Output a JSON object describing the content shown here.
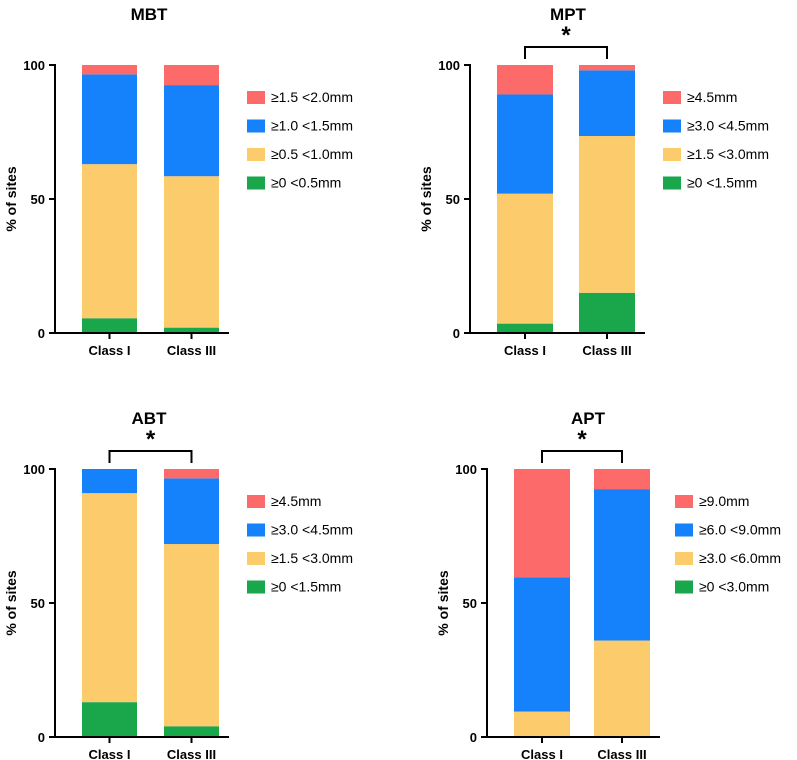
{
  "colors": {
    "green": "#1aa64a",
    "yellow": "#fccb6c",
    "blue": "#1581fb",
    "red": "#fc6a6a"
  },
  "chart_data": [
    {
      "type": "bar",
      "stacked": true,
      "title": "MBT",
      "ylabel": "% of sites",
      "xlabel": "",
      "ylim": [
        0,
        100
      ],
      "yticks": [
        "0",
        "50",
        "100"
      ],
      "categories": [
        "Class I",
        "Class III"
      ],
      "series": [
        {
          "name": "≥0 <0.5mm",
          "color": "green",
          "values": [
            5.5,
            2
          ]
        },
        {
          "name": "≥0.5 <1.0mm",
          "color": "yellow",
          "values": [
            57.5,
            56.5
          ]
        },
        {
          "name": "≥1.0 <1.5mm",
          "color": "blue",
          "values": [
            33.5,
            34
          ]
        },
        {
          "name": "≥1.5 <2.0mm",
          "color": "red",
          "values": [
            3.5,
            7.5
          ]
        }
      ],
      "significance": ""
    },
    {
      "type": "bar",
      "stacked": true,
      "title": "MPT",
      "ylabel": "% of sites",
      "xlabel": "",
      "ylim": [
        0,
        100
      ],
      "yticks": [
        "0",
        "50",
        "100"
      ],
      "categories": [
        "Class I",
        "Class III"
      ],
      "series": [
        {
          "name": "≥0 <1.5mm",
          "color": "green",
          "values": [
            3.5,
            15
          ]
        },
        {
          "name": "≥1.5 <3.0mm",
          "color": "yellow",
          "values": [
            48.5,
            58.5
          ]
        },
        {
          "name": "≥3.0 <4.5mm",
          "color": "blue",
          "values": [
            37,
            24.5
          ]
        },
        {
          "name": "≥4.5mm",
          "color": "red",
          "values": [
            11,
            2
          ]
        }
      ],
      "significance": "*"
    },
    {
      "type": "bar",
      "stacked": true,
      "title": "ABT",
      "ylabel": "% of sites",
      "xlabel": "",
      "ylim": [
        0,
        100
      ],
      "yticks": [
        "0",
        "50",
        "100"
      ],
      "categories": [
        "Class I",
        "Class III"
      ],
      "series": [
        {
          "name": "≥0 <1.5mm",
          "color": "green",
          "values": [
            13,
            4
          ]
        },
        {
          "name": "≥1.5 <3.0mm",
          "color": "yellow",
          "values": [
            78,
            68
          ]
        },
        {
          "name": "≥3.0 <4.5mm",
          "color": "blue",
          "values": [
            9,
            24.5
          ]
        },
        {
          "name": "≥4.5mm",
          "color": "red",
          "values": [
            0,
            3.5
          ]
        }
      ],
      "significance": "*"
    },
    {
      "type": "bar",
      "stacked": true,
      "title": "APT",
      "ylabel": "% of sites",
      "xlabel": "",
      "ylim": [
        0,
        100
      ],
      "yticks": [
        "0",
        "50",
        "100"
      ],
      "categories": [
        "Class I",
        "Class III"
      ],
      "series": [
        {
          "name": "≥0 <3.0mm",
          "color": "green",
          "values": [
            0,
            0
          ]
        },
        {
          "name": "≥3.0 <6.0mm",
          "color": "yellow",
          "values": [
            9.5,
            36
          ]
        },
        {
          "name": "≥6.0 <9.0mm",
          "color": "blue",
          "values": [
            50,
            56.5
          ]
        },
        {
          "name": "≥9.0mm",
          "color": "red",
          "values": [
            40.5,
            7.5
          ]
        }
      ],
      "significance": "*"
    }
  ]
}
